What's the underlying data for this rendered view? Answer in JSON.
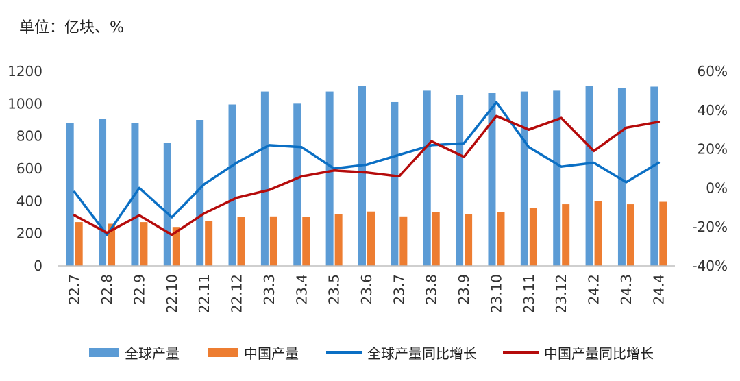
{
  "chart_data": {
    "type": "bar",
    "unit_label": "单位：亿块、%",
    "categories": [
      "22.7",
      "22.8",
      "22.9",
      "22.10",
      "22.11",
      "22.12",
      "23.3",
      "23.4",
      "23.5",
      "23.6",
      "23.7",
      "23.8",
      "23.9",
      "23.10",
      "23.11",
      "23.12",
      "24.2",
      "24.3",
      "24.4"
    ],
    "series": [
      {
        "name": "全球产量",
        "kind": "bar",
        "axis": "left",
        "color": "#5B9BD5",
        "values": [
          880,
          905,
          880,
          760,
          900,
          995,
          1075,
          1000,
          1075,
          1110,
          1010,
          1080,
          1055,
          1065,
          1075,
          1080,
          1110,
          1095,
          1105
        ]
      },
      {
        "name": "中国产量",
        "kind": "bar",
        "axis": "left",
        "color": "#ED7D31",
        "values": [
          270,
          260,
          270,
          240,
          275,
          300,
          305,
          300,
          320,
          335,
          305,
          330,
          320,
          330,
          355,
          380,
          400,
          380,
          395
        ]
      },
      {
        "name": "全球产量同比增长",
        "kind": "line",
        "axis": "right",
        "color": "#0B6FC4",
        "values": [
          -2,
          -24,
          0,
          -15,
          2,
          13,
          22,
          21,
          10,
          12,
          17,
          22,
          23,
          44,
          21,
          11,
          13,
          3,
          13
        ]
      },
      {
        "name": "中国产量同比增长",
        "kind": "line",
        "axis": "right",
        "color": "#B50B0B",
        "values": [
          -14,
          -23,
          -14,
          -24,
          -13,
          -5,
          -1,
          6,
          9,
          8,
          6,
          24,
          16,
          37,
          30,
          36,
          19,
          31,
          34
        ]
      }
    ],
    "y_left": {
      "min": 0,
      "max": 1200,
      "ticks": [
        "0",
        "200",
        "400",
        "600",
        "800",
        "1000",
        "1200"
      ]
    },
    "y_right": {
      "min": -40,
      "max": 60,
      "ticks": [
        "-40%",
        "-20%",
        "0%",
        "20%",
        "40%",
        "60%"
      ]
    },
    "grid": false,
    "legend_position": "bottom"
  }
}
